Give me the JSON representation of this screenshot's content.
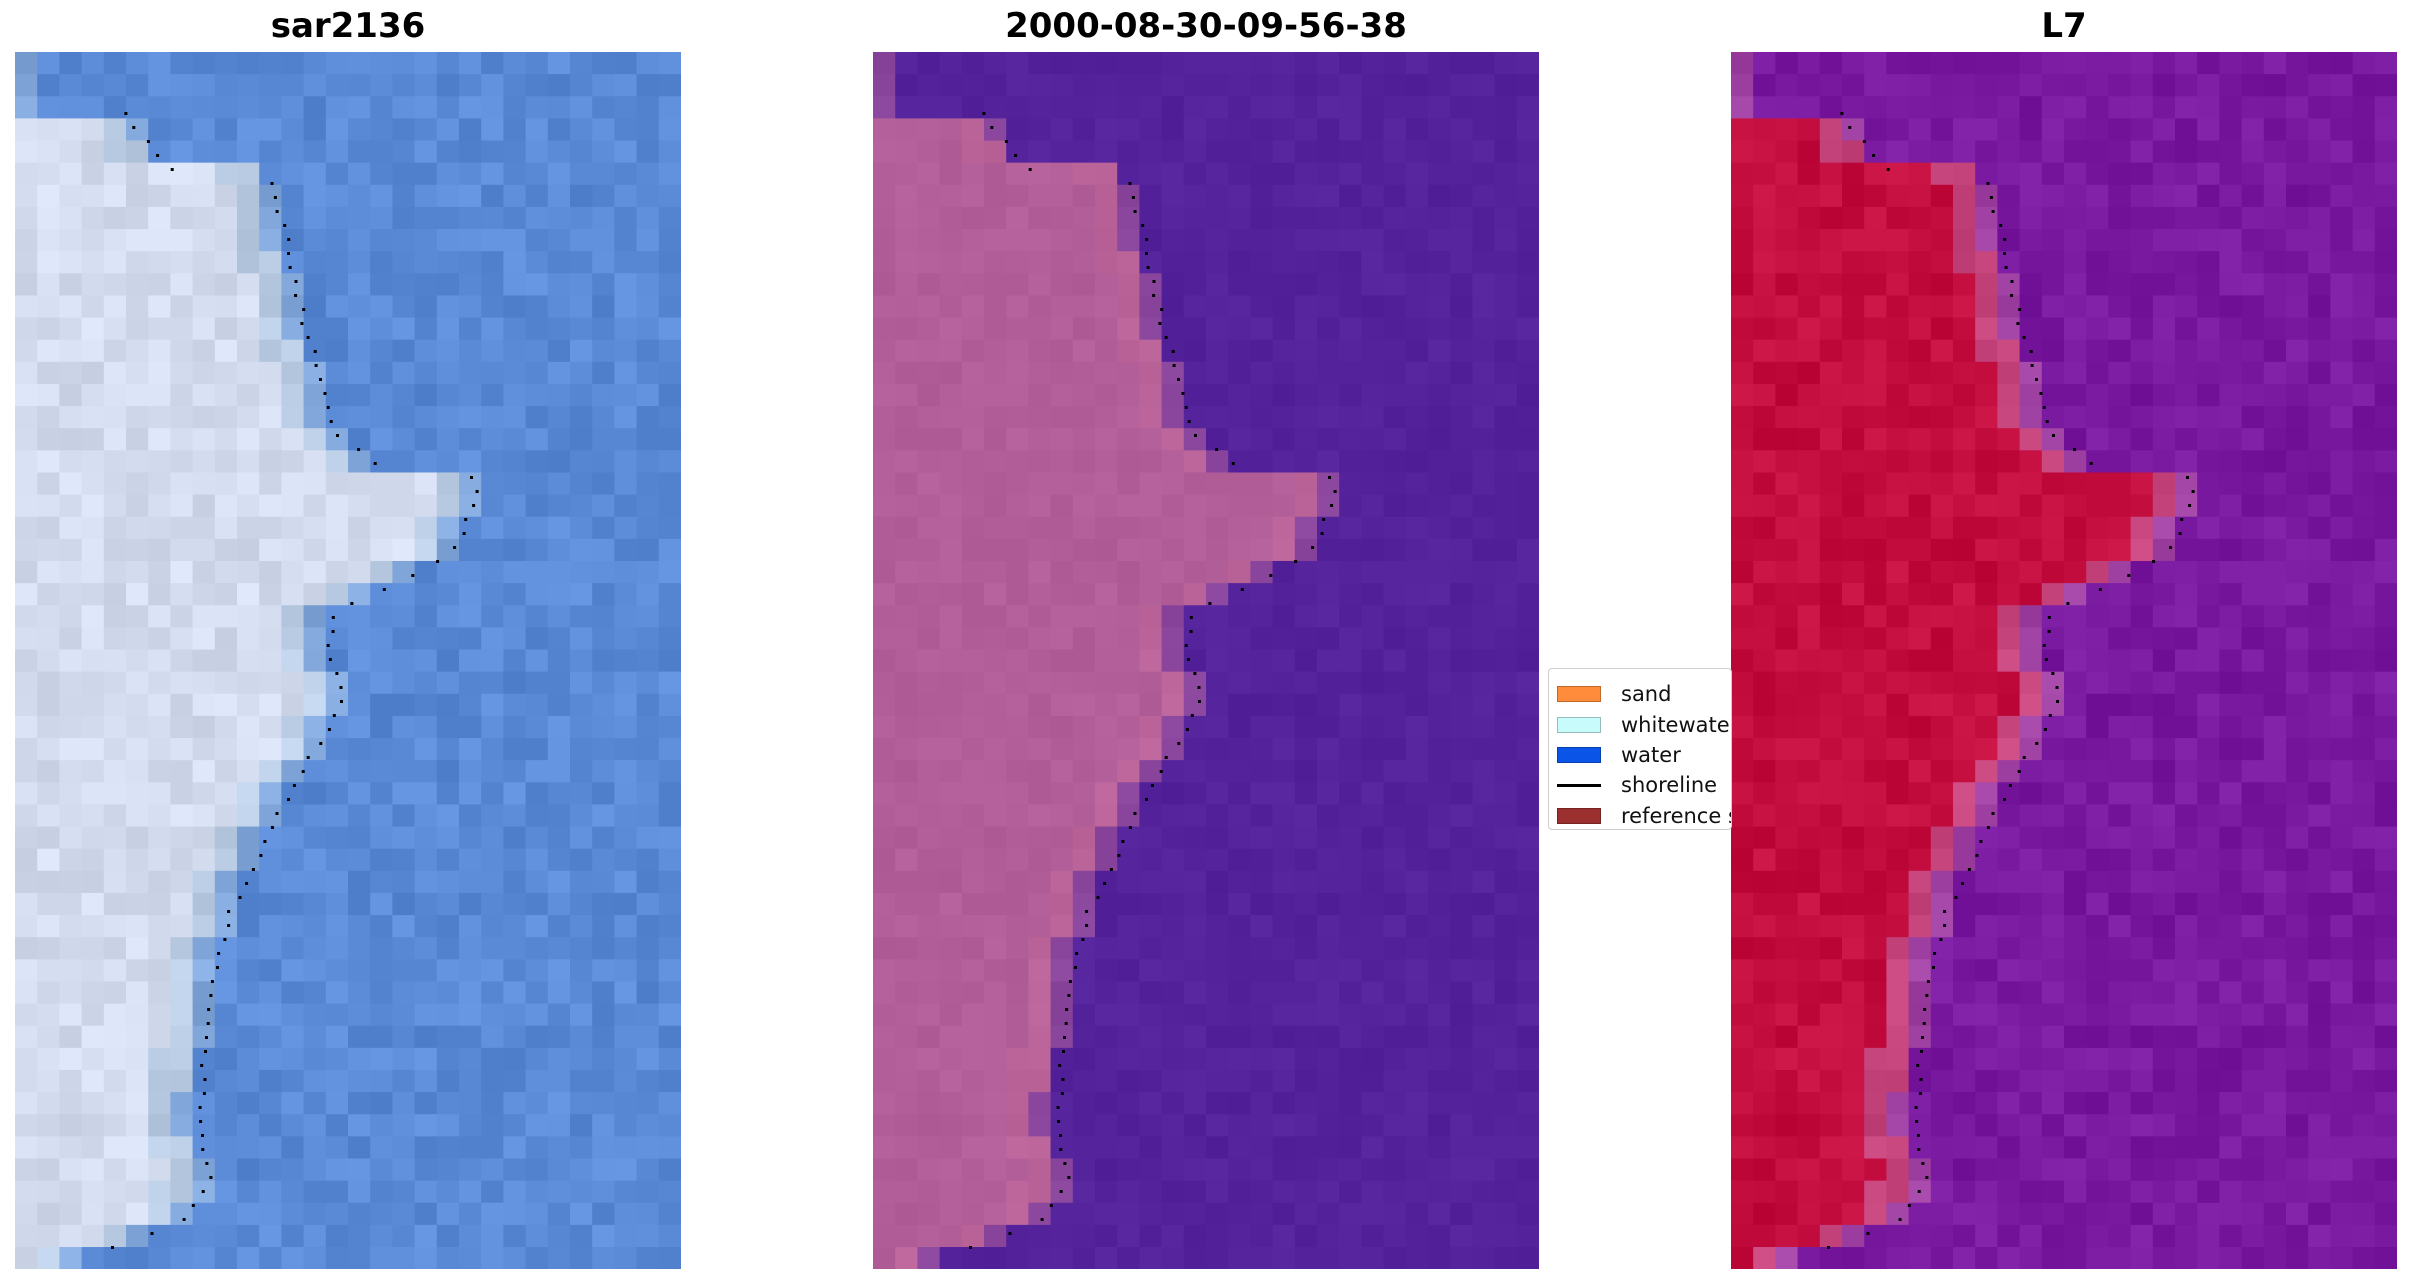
{
  "panels": [
    {
      "title": "sar2136",
      "style": "rgb"
    },
    {
      "title": "2000-08-30-09-56-38",
      "style": "class"
    },
    {
      "title": "L7",
      "style": "index"
    }
  ],
  "legend": {
    "items": [
      {
        "label": "sand",
        "type": "patch",
        "color": "#ff8c3a"
      },
      {
        "label": "whitewater",
        "type": "patch",
        "color": "#c8fbfb"
      },
      {
        "label": "water",
        "type": "patch",
        "color": "#0a55e8"
      },
      {
        "label": "shoreline",
        "type": "line",
        "color": "#000000"
      },
      {
        "label": "reference shoreline buffer",
        "type": "patch",
        "color": "#9c2f2f"
      }
    ]
  },
  "colors": {
    "ocean_rgb": "#5a8ad6",
    "land_rgb": "#d3dbee",
    "ocean_class": "#54239b",
    "land_class": "#b25e98",
    "ocean_index": "#7819a0",
    "land_index": "#c40d3f",
    "shoreline_dots": "#000000"
  }
}
